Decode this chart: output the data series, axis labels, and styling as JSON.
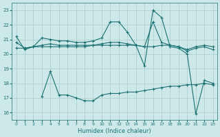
{
  "xlabel": "Humidex (Indice chaleur)",
  "xlim": [
    -0.5,
    23.5
  ],
  "ylim": [
    15.5,
    23.5
  ],
  "yticks": [
    16,
    17,
    18,
    19,
    20,
    21,
    22,
    23
  ],
  "xticks": [
    0,
    1,
    2,
    3,
    4,
    5,
    6,
    7,
    8,
    9,
    10,
    11,
    12,
    13,
    14,
    15,
    16,
    17,
    18,
    19,
    20,
    21,
    22,
    23
  ],
  "bg_color": "#cce8e8",
  "grid_color": "#aacccc",
  "line_color": "#1a7070",
  "lines": [
    {
      "x": [
        0,
        1,
        2,
        3,
        4,
        5,
        6,
        7,
        8,
        9,
        10,
        11,
        12,
        13,
        14,
        15,
        16,
        17,
        18,
        19,
        20,
        21,
        22,
        23
      ],
      "y": [
        21.2,
        20.3,
        20.5,
        21.1,
        21.0,
        20.9,
        20.9,
        20.8,
        20.8,
        20.9,
        21.1,
        22.2,
        22.2,
        21.5,
        20.6,
        19.2,
        23.0,
        22.5,
        20.5,
        20.4,
        20.0,
        15.9,
        18.2,
        18.0
      ]
    },
    {
      "x": [
        0,
        1,
        2,
        3,
        4,
        5,
        6,
        7,
        8,
        9,
        10,
        11,
        12,
        13,
        14,
        15,
        16,
        17,
        18,
        19,
        20,
        21,
        22,
        23
      ],
      "y": [
        20.8,
        20.4,
        20.5,
        20.6,
        20.7,
        20.6,
        20.6,
        20.6,
        20.6,
        20.6,
        20.7,
        20.8,
        20.8,
        20.7,
        20.6,
        20.5,
        22.2,
        20.8,
        20.6,
        20.5,
        20.2,
        20.4,
        20.5,
        20.3
      ]
    },
    {
      "x": [
        0,
        1,
        2,
        3,
        4,
        5,
        6,
        7,
        8,
        9,
        10,
        11,
        12,
        13,
        14,
        15,
        16,
        17,
        18,
        19,
        20,
        21,
        22,
        23
      ],
      "y": [
        20.4,
        20.4,
        20.5,
        20.5,
        20.5,
        20.5,
        20.5,
        20.5,
        20.5,
        20.6,
        20.6,
        20.6,
        20.6,
        20.6,
        20.6,
        20.5,
        20.5,
        20.6,
        20.6,
        20.5,
        20.3,
        20.5,
        20.6,
        20.5
      ]
    },
    {
      "x": [
        3,
        4,
        5,
        6,
        7,
        8,
        9,
        10,
        11,
        12,
        13,
        14,
        15,
        16,
        17,
        18,
        19,
        20,
        21,
        22,
        23
      ],
      "y": [
        17.1,
        18.8,
        17.2,
        17.2,
        17.0,
        16.8,
        16.8,
        17.2,
        17.3,
        17.3,
        17.4,
        17.4,
        17.5,
        17.6,
        17.7,
        17.8,
        17.8,
        17.9,
        17.9,
        18.0,
        17.9
      ]
    }
  ],
  "marker": "+"
}
